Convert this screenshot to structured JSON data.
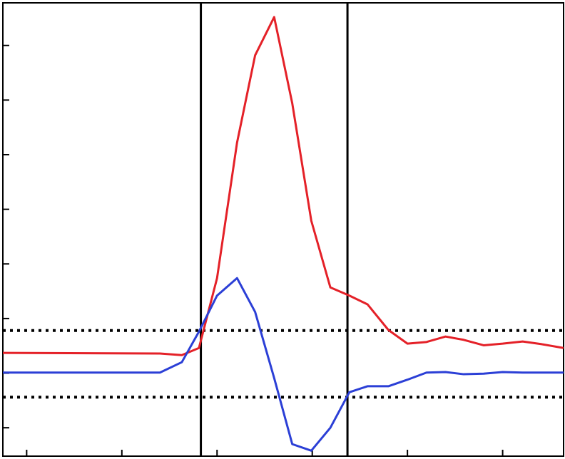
{
  "chart_data": {
    "type": "line",
    "x": [
      -0.25,
      1.4,
      1.63,
      1.81,
      2.0,
      2.21,
      2.4,
      2.6,
      2.79,
      2.99,
      3.19,
      3.39,
      3.58,
      3.8,
      4.0,
      4.2,
      4.4,
      4.59,
      4.8,
      5.0,
      5.21,
      5.41,
      5.64
    ],
    "series": [
      {
        "color": "#e42128",
        "values": [
          1.37,
          1.36,
          1.33,
          1.46,
          2.74,
          5.22,
          6.82,
          7.52,
          5.94,
          3.79,
          2.57,
          2.42,
          2.26,
          1.79,
          1.54,
          1.57,
          1.67,
          1.61,
          1.51,
          1.54,
          1.58,
          1.53,
          1.46
        ]
      },
      {
        "color": "#2b3fd6",
        "values": [
          1.01,
          1.01,
          1.2,
          1.76,
          2.42,
          2.74,
          2.12,
          0.91,
          -0.3,
          -0.42,
          0,
          0.65,
          0.76,
          0.76,
          0.88,
          1.01,
          1.02,
          0.98,
          0.99,
          1.02,
          1.01,
          1.01,
          1.01
        ]
      }
    ],
    "vlines": [
      1.83,
      3.37
    ],
    "hlines": [
      1.78,
      0.56
    ],
    "xlim": [
      -0.25,
      5.64
    ],
    "ylim": [
      -0.52,
      7.78
    ],
    "xticks": [
      0,
      1,
      2,
      3,
      4,
      5
    ],
    "yticks": [
      0,
      1,
      2,
      3,
      4,
      5,
      6,
      7
    ]
  }
}
